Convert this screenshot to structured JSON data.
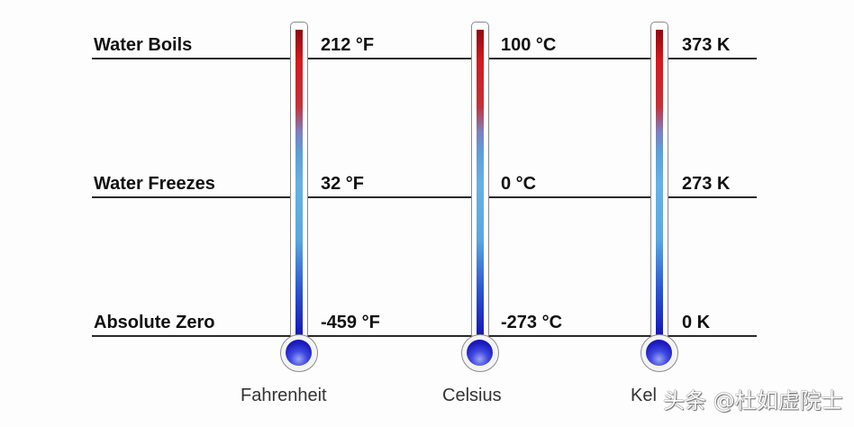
{
  "rows": [
    {
      "label": "Water Boils",
      "values": [
        "212 °F",
        "100 °C",
        "373 K"
      ]
    },
    {
      "label": "Water Freezes",
      "values": [
        "32 °F",
        "0 °C",
        "273 K"
      ]
    },
    {
      "label": "Absolute Zero",
      "values": [
        "-459 °F",
        "-273 °C",
        "0 K"
      ]
    }
  ],
  "scales": [
    "Fahrenheit",
    "Celsius",
    "Kel"
  ],
  "watermark": "头条 @杜如虚院士",
  "colors": {
    "hot": "#d21a1f",
    "mid": "#66b1e3",
    "cold": "#1414b8"
  }
}
